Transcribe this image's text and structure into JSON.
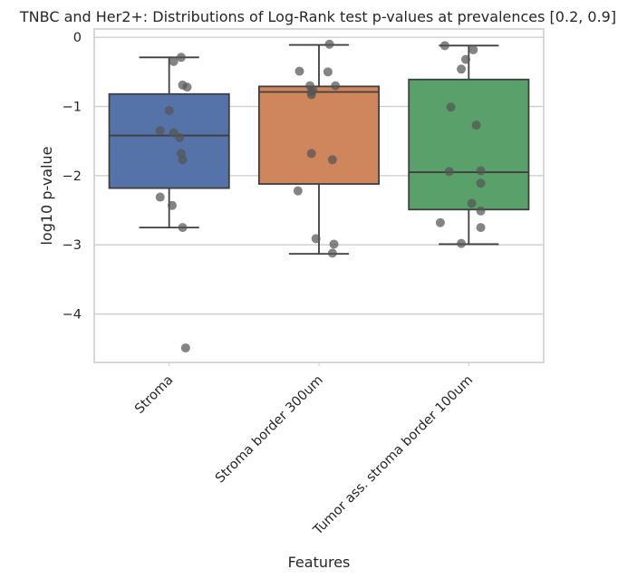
{
  "chart_data": {
    "type": "box",
    "title": "TNBC and Her2+: Distributions of Log-Rank test p-values at prevalences [0.2, 0.9]",
    "xlabel": "Features",
    "ylabel": "log10 p-value",
    "ylim": [
      -4.7,
      0.12
    ],
    "yticks": [
      0,
      -1,
      -2,
      -3,
      -4
    ],
    "ytick_labels": [
      "0",
      "−1",
      "−2",
      "−3",
      "−4"
    ],
    "grid": true,
    "categories": [
      "Stroma",
      "Stroma border 300um",
      "Tumor ass. stroma border 100um"
    ],
    "colors": [
      "#5572a9",
      "#cf865d",
      "#5aa06a"
    ],
    "point_color": "#555555",
    "boxes": [
      {
        "q1": -2.18,
        "median": -1.42,
        "q3": -0.82,
        "whisker_low": -2.75,
        "whisker_high": -0.29
      },
      {
        "q1": -2.12,
        "median": -0.79,
        "q3": -0.71,
        "whisker_low": -3.13,
        "whisker_high": -0.11
      },
      {
        "q1": -2.49,
        "median": -1.95,
        "q3": -0.61,
        "whisker_low": -2.99,
        "whisker_high": -0.12
      }
    ],
    "points": [
      [
        {
          "dx": 0.08,
          "y": -0.29
        },
        {
          "dx": 0.03,
          "y": -0.35
        },
        {
          "dx": 0.09,
          "y": -0.69
        },
        {
          "dx": 0.12,
          "y": -0.72
        },
        {
          "dx": 0.0,
          "y": -1.06
        },
        {
          "dx": -0.06,
          "y": -1.35
        },
        {
          "dx": 0.03,
          "y": -1.38
        },
        {
          "dx": 0.07,
          "y": -1.45
        },
        {
          "dx": 0.08,
          "y": -1.68
        },
        {
          "dx": 0.09,
          "y": -1.77
        },
        {
          "dx": -0.06,
          "y": -2.31
        },
        {
          "dx": 0.02,
          "y": -2.43
        },
        {
          "dx": 0.09,
          "y": -2.75
        },
        {
          "dx": 0.11,
          "y": -4.49
        }
      ],
      [
        {
          "dx": 0.07,
          "y": -0.1
        },
        {
          "dx": -0.13,
          "y": -0.49
        },
        {
          "dx": 0.06,
          "y": -0.5
        },
        {
          "dx": -0.06,
          "y": -0.7
        },
        {
          "dx": 0.11,
          "y": -0.7
        },
        {
          "dx": -0.04,
          "y": -0.76
        },
        {
          "dx": -0.05,
          "y": -0.79
        },
        {
          "dx": -0.05,
          "y": -0.83
        },
        {
          "dx": -0.05,
          "y": -1.68
        },
        {
          "dx": 0.09,
          "y": -1.77
        },
        {
          "dx": -0.14,
          "y": -2.22
        },
        {
          "dx": -0.02,
          "y": -2.91
        },
        {
          "dx": 0.1,
          "y": -2.99
        },
        {
          "dx": 0.09,
          "y": -3.12
        }
      ],
      [
        {
          "dx": -0.16,
          "y": -0.12
        },
        {
          "dx": 0.03,
          "y": -0.18
        },
        {
          "dx": -0.02,
          "y": -0.32
        },
        {
          "dx": -0.05,
          "y": -0.46
        },
        {
          "dx": -0.12,
          "y": -1.01
        },
        {
          "dx": 0.05,
          "y": -1.27
        },
        {
          "dx": -0.13,
          "y": -1.94
        },
        {
          "dx": 0.08,
          "y": -1.93
        },
        {
          "dx": 0.08,
          "y": -2.11
        },
        {
          "dx": 0.02,
          "y": -2.4
        },
        {
          "dx": 0.08,
          "y": -2.51
        },
        {
          "dx": -0.19,
          "y": -2.68
        },
        {
          "dx": 0.08,
          "y": -2.75
        },
        {
          "dx": -0.05,
          "y": -2.98
        }
      ]
    ]
  }
}
